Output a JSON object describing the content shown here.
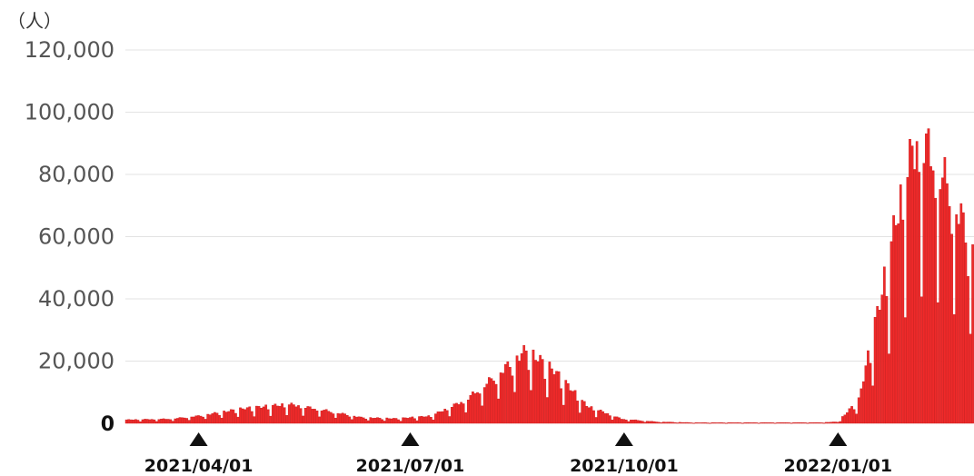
{
  "chart_data": {
    "type": "bar",
    "unit_label": "（人）",
    "ylim": [
      0,
      120000
    ],
    "yticks": [
      {
        "value": 120000,
        "label": "120,000"
      },
      {
        "value": 100000,
        "label": "100,000"
      },
      {
        "value": 80000,
        "label": "80,000"
      },
      {
        "value": 60000,
        "label": "60,000"
      },
      {
        "value": 40000,
        "label": "40,000"
      },
      {
        "value": 20000,
        "label": "20,000"
      },
      {
        "value": 0,
        "label": "0"
      }
    ],
    "grid": true,
    "x_start": "2021-03-01",
    "x_end": "2022-02-28",
    "date_markers": [
      {
        "date": "2021-04-01",
        "label": "2021/04/01"
      },
      {
        "date": "2021-07-01",
        "label": "2021/07/01"
      },
      {
        "date": "2021-10-01",
        "label": "2021/10/01"
      },
      {
        "date": "2022-01-01",
        "label": "2022/01/01"
      }
    ],
    "series": [
      {
        "color": "#ee2a2a",
        "keypoints": [
          {
            "date": "2021-03-01",
            "value": 1200
          },
          {
            "date": "2021-03-20",
            "value": 1500
          },
          {
            "date": "2021-04-01",
            "value": 2500
          },
          {
            "date": "2021-04-20",
            "value": 5000
          },
          {
            "date": "2021-05-10",
            "value": 6500
          },
          {
            "date": "2021-05-25",
            "value": 4500
          },
          {
            "date": "2021-06-10",
            "value": 2000
          },
          {
            "date": "2021-06-25",
            "value": 1600
          },
          {
            "date": "2021-07-10",
            "value": 2500
          },
          {
            "date": "2021-07-25",
            "value": 8000
          },
          {
            "date": "2021-08-05",
            "value": 15000
          },
          {
            "date": "2021-08-20",
            "value": 25000
          },
          {
            "date": "2021-09-01",
            "value": 18000
          },
          {
            "date": "2021-09-15",
            "value": 6000
          },
          {
            "date": "2021-09-30",
            "value": 1500
          },
          {
            "date": "2021-10-15",
            "value": 500
          },
          {
            "date": "2021-11-01",
            "value": 200
          },
          {
            "date": "2021-12-25",
            "value": 250
          },
          {
            "date": "2022-01-01",
            "value": 500
          },
          {
            "date": "2022-01-10",
            "value": 8000
          },
          {
            "date": "2022-01-20",
            "value": 45000
          },
          {
            "date": "2022-01-30",
            "value": 85000
          },
          {
            "date": "2022-02-05",
            "value": 98000
          },
          {
            "date": "2022-02-10",
            "value": 92000
          },
          {
            "date": "2022-02-18",
            "value": 80000
          },
          {
            "date": "2022-02-28",
            "value": 60000
          }
        ]
      }
    ]
  }
}
